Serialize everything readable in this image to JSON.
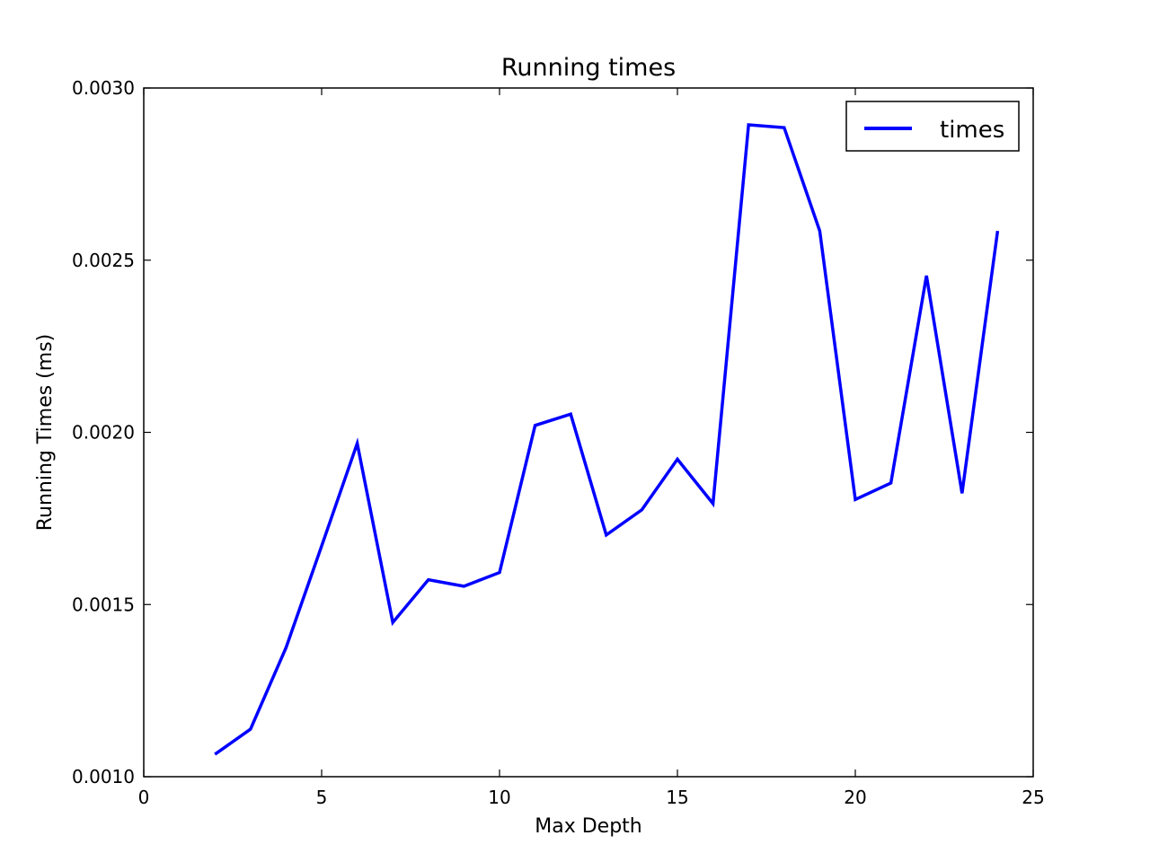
{
  "chart_data": {
    "type": "line",
    "title": "Running times",
    "xlabel": "Max Depth",
    "ylabel": "Running Times (ms)",
    "xlim": [
      0,
      25
    ],
    "ylim": [
      0.001,
      0.003
    ],
    "xticks": [
      0,
      5,
      10,
      15,
      20,
      25
    ],
    "xtick_labels": [
      "0",
      "5",
      "10",
      "15",
      "20",
      "25"
    ],
    "yticks": [
      0.001,
      0.0015,
      0.002,
      0.0025,
      0.003
    ],
    "ytick_labels": [
      "0.0010",
      "0.0015",
      "0.0020",
      "0.0025",
      "0.0030"
    ],
    "grid": false,
    "legend_position": "top-right",
    "x": [
      2,
      3,
      4,
      5,
      6,
      7,
      8,
      9,
      10,
      11,
      12,
      13,
      14,
      15,
      16,
      17,
      18,
      19,
      20,
      21,
      22,
      23,
      24
    ],
    "series": [
      {
        "name": "times",
        "color": "#0000ff",
        "values": [
          0.001065,
          0.001138,
          0.001375,
          0.00167,
          0.001968,
          0.001448,
          0.001572,
          0.001553,
          0.001593,
          0.00202,
          0.002053,
          0.001702,
          0.001775,
          0.001922,
          0.001793,
          0.002893,
          0.002885,
          0.002585,
          0.001805,
          0.001853,
          0.002455,
          0.001823,
          0.002585
        ]
      }
    ]
  }
}
